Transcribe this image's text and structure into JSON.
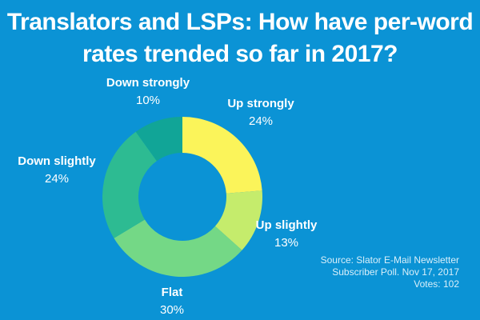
{
  "title_line1": "Translators and LSPs: How have per-word",
  "title_line2": "rates trended so far in 2017?",
  "chart_data": {
    "type": "pie",
    "donut": true,
    "slices": [
      {
        "label": "Up strongly",
        "value": 24,
        "pct_label": "24%",
        "color": "#fbf45a"
      },
      {
        "label": "Up slightly",
        "value": 13,
        "pct_label": "13%",
        "color": "#c5ec6c"
      },
      {
        "label": "Flat",
        "value": 30,
        "pct_label": "30%",
        "color": "#74d886"
      },
      {
        "label": "Down slightly",
        "value": 24,
        "pct_label": "24%",
        "color": "#2dbb92"
      },
      {
        "label": "Down strongly",
        "value": 10,
        "pct_label": "10%",
        "color": "#11a597"
      }
    ]
  },
  "source": {
    "line1": "Source: Slator E-Mail Newsletter",
    "line2": "Subscriber Poll. Nov 17, 2017",
    "line3": "Votes: 102"
  }
}
